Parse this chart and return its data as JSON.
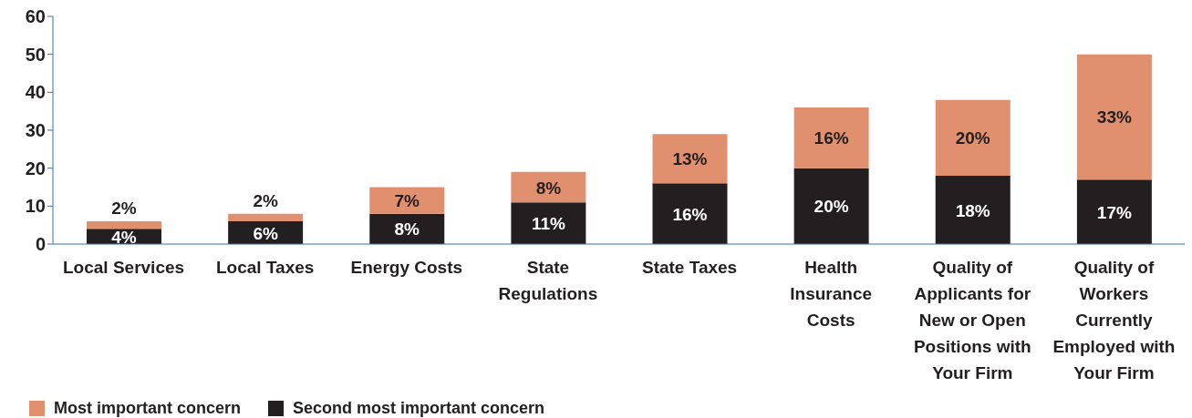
{
  "chart_data": {
    "type": "bar",
    "stacked": true,
    "categories": [
      "Local Services",
      "Local Taxes",
      "Energy Costs",
      "State Regulations",
      "State Taxes",
      "Health Insurance Costs",
      "Quality of Applicants for New or Open Positions with Your Firm",
      "Quality of Workers Currently Employed with Your Firm"
    ],
    "series": [
      {
        "name": "Second most important concern",
        "color": "#231f20",
        "values": [
          4,
          6,
          8,
          11,
          16,
          20,
          18,
          17
        ],
        "value_labels": [
          "4%",
          "6%",
          "8%",
          "11%",
          "16%",
          "20%",
          "18%",
          "17%"
        ]
      },
      {
        "name": "Most important concern",
        "color": "#e0906e",
        "values": [
          2,
          2,
          7,
          8,
          13,
          16,
          20,
          33
        ],
        "value_labels": [
          "2%",
          "2%",
          "7%",
          "8%",
          "13%",
          "16%",
          "20%",
          "33%"
        ]
      }
    ],
    "ylim": [
      0,
      60
    ],
    "yticks": [
      0,
      10,
      20,
      30,
      40,
      50,
      60
    ],
    "legend": "bottom left"
  }
}
